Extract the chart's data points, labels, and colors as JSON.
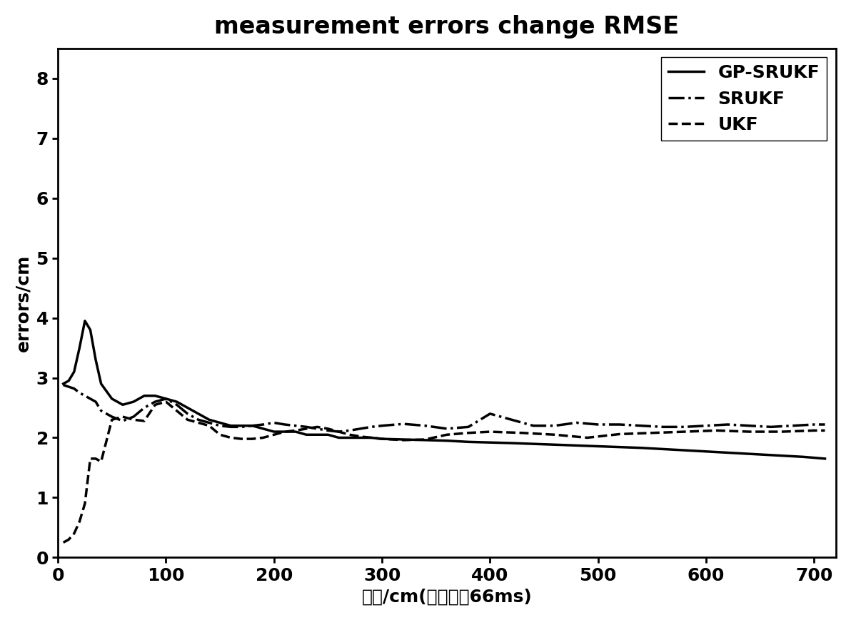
{
  "title": "measurement errors change RMSE",
  "xlabel": "路程/cm(采样间隔66ms)",
  "ylabel": "errors/cm",
  "xlim": [
    0,
    720
  ],
  "ylim": [
    0,
    8.5
  ],
  "xticks": [
    0,
    100,
    200,
    300,
    400,
    500,
    600,
    700
  ],
  "yticks": [
    0,
    1,
    2,
    3,
    4,
    5,
    6,
    7,
    8
  ],
  "line_color": "#000000",
  "background_color": "#ffffff",
  "gp_srukf": {
    "x": [
      5,
      10,
      15,
      20,
      25,
      30,
      35,
      40,
      50,
      60,
      70,
      80,
      90,
      100,
      110,
      120,
      130,
      140,
      150,
      160,
      170,
      180,
      190,
      200,
      210,
      220,
      230,
      240,
      250,
      260,
      270,
      280,
      290,
      300,
      320,
      340,
      360,
      380,
      400,
      420,
      450,
      480,
      510,
      540,
      570,
      600,
      630,
      660,
      690,
      710
    ],
    "y": [
      2.9,
      2.95,
      3.1,
      3.5,
      3.95,
      3.8,
      3.3,
      2.9,
      2.65,
      2.55,
      2.6,
      2.7,
      2.7,
      2.65,
      2.6,
      2.5,
      2.4,
      2.3,
      2.25,
      2.2,
      2.2,
      2.2,
      2.15,
      2.1,
      2.1,
      2.1,
      2.05,
      2.05,
      2.05,
      2.0,
      2.0,
      2.0,
      2.0,
      1.98,
      1.97,
      1.96,
      1.95,
      1.93,
      1.92,
      1.91,
      1.89,
      1.87,
      1.85,
      1.83,
      1.8,
      1.77,
      1.74,
      1.71,
      1.68,
      1.65
    ],
    "label": "GP-SRUKF",
    "linestyle": "-",
    "linewidth": 2.5
  },
  "srukf": {
    "x": [
      5,
      10,
      15,
      20,
      25,
      30,
      35,
      40,
      50,
      60,
      70,
      80,
      90,
      100,
      110,
      120,
      130,
      140,
      150,
      160,
      170,
      180,
      190,
      200,
      210,
      220,
      230,
      240,
      250,
      260,
      270,
      280,
      290,
      300,
      320,
      340,
      360,
      380,
      400,
      420,
      440,
      460,
      480,
      500,
      520,
      540,
      560,
      580,
      600,
      620,
      640,
      660,
      680,
      700,
      710
    ],
    "y": [
      2.88,
      2.85,
      2.82,
      2.75,
      2.7,
      2.65,
      2.6,
      2.45,
      2.35,
      2.28,
      2.35,
      2.5,
      2.6,
      2.65,
      2.55,
      2.4,
      2.3,
      2.25,
      2.2,
      2.18,
      2.18,
      2.2,
      2.22,
      2.25,
      2.22,
      2.2,
      2.18,
      2.15,
      2.12,
      2.1,
      2.12,
      2.15,
      2.18,
      2.2,
      2.23,
      2.2,
      2.15,
      2.18,
      2.4,
      2.3,
      2.2,
      2.2,
      2.25,
      2.22,
      2.22,
      2.2,
      2.18,
      2.18,
      2.2,
      2.22,
      2.2,
      2.18,
      2.2,
      2.22,
      2.22
    ],
    "label": "SRUKF",
    "linestyle": "-.",
    "linewidth": 2.5
  },
  "ukf": {
    "x": [
      5,
      10,
      15,
      20,
      25,
      30,
      35,
      40,
      50,
      60,
      70,
      80,
      90,
      100,
      110,
      120,
      130,
      140,
      150,
      160,
      170,
      180,
      190,
      200,
      210,
      220,
      230,
      240,
      250,
      260,
      270,
      280,
      290,
      300,
      320,
      340,
      360,
      380,
      400,
      430,
      460,
      490,
      520,
      550,
      580,
      610,
      640,
      670,
      700,
      710
    ],
    "y": [
      0.25,
      0.3,
      0.4,
      0.6,
      0.9,
      1.65,
      1.65,
      1.6,
      2.3,
      2.35,
      2.3,
      2.28,
      2.55,
      2.6,
      2.45,
      2.3,
      2.25,
      2.2,
      2.05,
      2.0,
      1.98,
      1.98,
      2.0,
      2.05,
      2.1,
      2.12,
      2.15,
      2.18,
      2.15,
      2.1,
      2.05,
      2.02,
      2.0,
      1.98,
      1.96,
      1.97,
      2.05,
      2.08,
      2.1,
      2.08,
      2.05,
      2.0,
      2.06,
      2.08,
      2.1,
      2.12,
      2.1,
      2.1,
      2.12,
      2.12
    ],
    "label": "UKF",
    "linestyle": "--",
    "linewidth": 2.5
  },
  "title_fontsize": 24,
  "label_fontsize": 18,
  "tick_fontsize": 18,
  "legend_fontsize": 18
}
